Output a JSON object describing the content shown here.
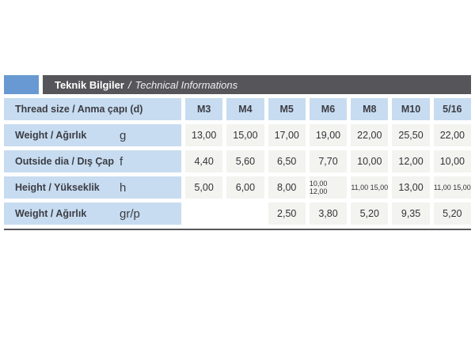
{
  "title": {
    "turkish": "Teknik Bilgiler",
    "separator": "/",
    "english": "Technical Informations"
  },
  "table": {
    "header": {
      "label": "Thread size / Anma çapı (d)",
      "columns": [
        "M3",
        "M4",
        "M5",
        "M6",
        "M8",
        "M10",
        "5/16"
      ]
    },
    "rows": [
      {
        "label": "Weight / Ağırlık",
        "symbol": "g",
        "values": [
          "13,00",
          "15,00",
          "17,00",
          "19,00",
          "22,00",
          "25,50",
          "22,00"
        ]
      },
      {
        "label": "Outside dia / Dış Çap",
        "symbol": "f",
        "values": [
          "4,40",
          "5,60",
          "6,50",
          "7,70",
          "10,00",
          "12,00",
          "10,00"
        ]
      },
      {
        "label": "Height / Yükseklik",
        "symbol": "h",
        "values": [
          "5,00",
          "6,00",
          "8,00",
          "10,00 12,00",
          "11,00 15,00",
          "13,00",
          "11,00 15,00"
        ]
      },
      {
        "label": "Weight / Ağırlık",
        "symbol": "gr/p",
        "values": [
          "",
          "",
          "2,50",
          "3,80",
          "5,20",
          "9,35",
          "5,20"
        ]
      }
    ]
  },
  "colors": {
    "accent_blue": "#6899d2",
    "header_gray": "#56565a",
    "cell_blue": "#c7dcf0",
    "cell_gray": "#f3f3f0",
    "line_gray": "#57575a",
    "text_dark": "#3c3c44",
    "title_text": "#ffffff"
  }
}
